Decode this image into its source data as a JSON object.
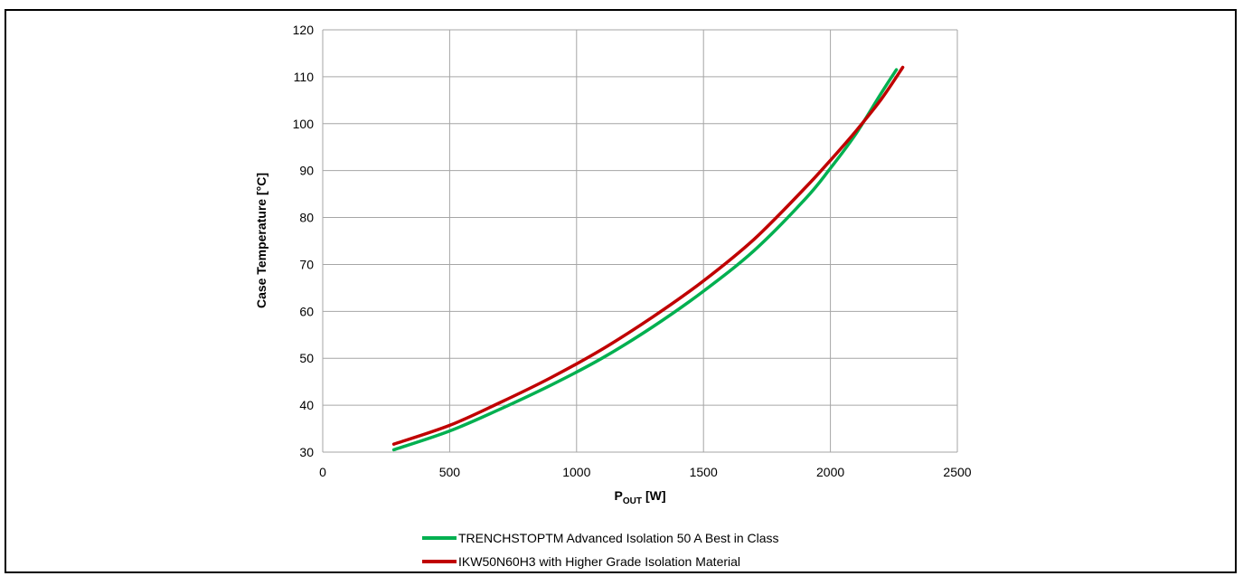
{
  "chart_data": {
    "type": "line",
    "xlabel": {
      "main": "P",
      "subscript": "OUT",
      "unit": "[W]"
    },
    "ylabel": "Case Temperature [°C]",
    "xlim": [
      0,
      2500
    ],
    "ylim": [
      30,
      120
    ],
    "xticks": [
      "0",
      "500",
      "1000",
      "1500",
      "2000",
      "2500"
    ],
    "yticks": [
      "30",
      "40",
      "50",
      "60",
      "70",
      "80",
      "90",
      "100",
      "110",
      "120"
    ],
    "grid": true,
    "legend_position": "bottom",
    "series": [
      {
        "name": "TRENCHSTOPTM Advanced Isolation 50 A Best in Class",
        "color": "#00b050",
        "x": [
          280,
          500,
          700,
          900,
          1100,
          1300,
          1500,
          1700,
          1900,
          2000,
          2100,
          2200,
          2260
        ],
        "y": [
          30.5,
          34.5,
          39.2,
          44.3,
          50.0,
          56.7,
          64.3,
          73.0,
          83.9,
          90.5,
          97.8,
          106.5,
          111.5
        ]
      },
      {
        "name": "IKW50N60H3 with Higher Grade Isolation Material",
        "color": "#c00000",
        "x": [
          280,
          500,
          700,
          900,
          1100,
          1300,
          1500,
          1700,
          1900,
          2000,
          2100,
          2200,
          2285
        ],
        "y": [
          31.7,
          35.7,
          40.6,
          45.9,
          51.9,
          58.8,
          66.5,
          75.4,
          86.3,
          92.2,
          98.4,
          105.2,
          112.0
        ]
      }
    ]
  }
}
